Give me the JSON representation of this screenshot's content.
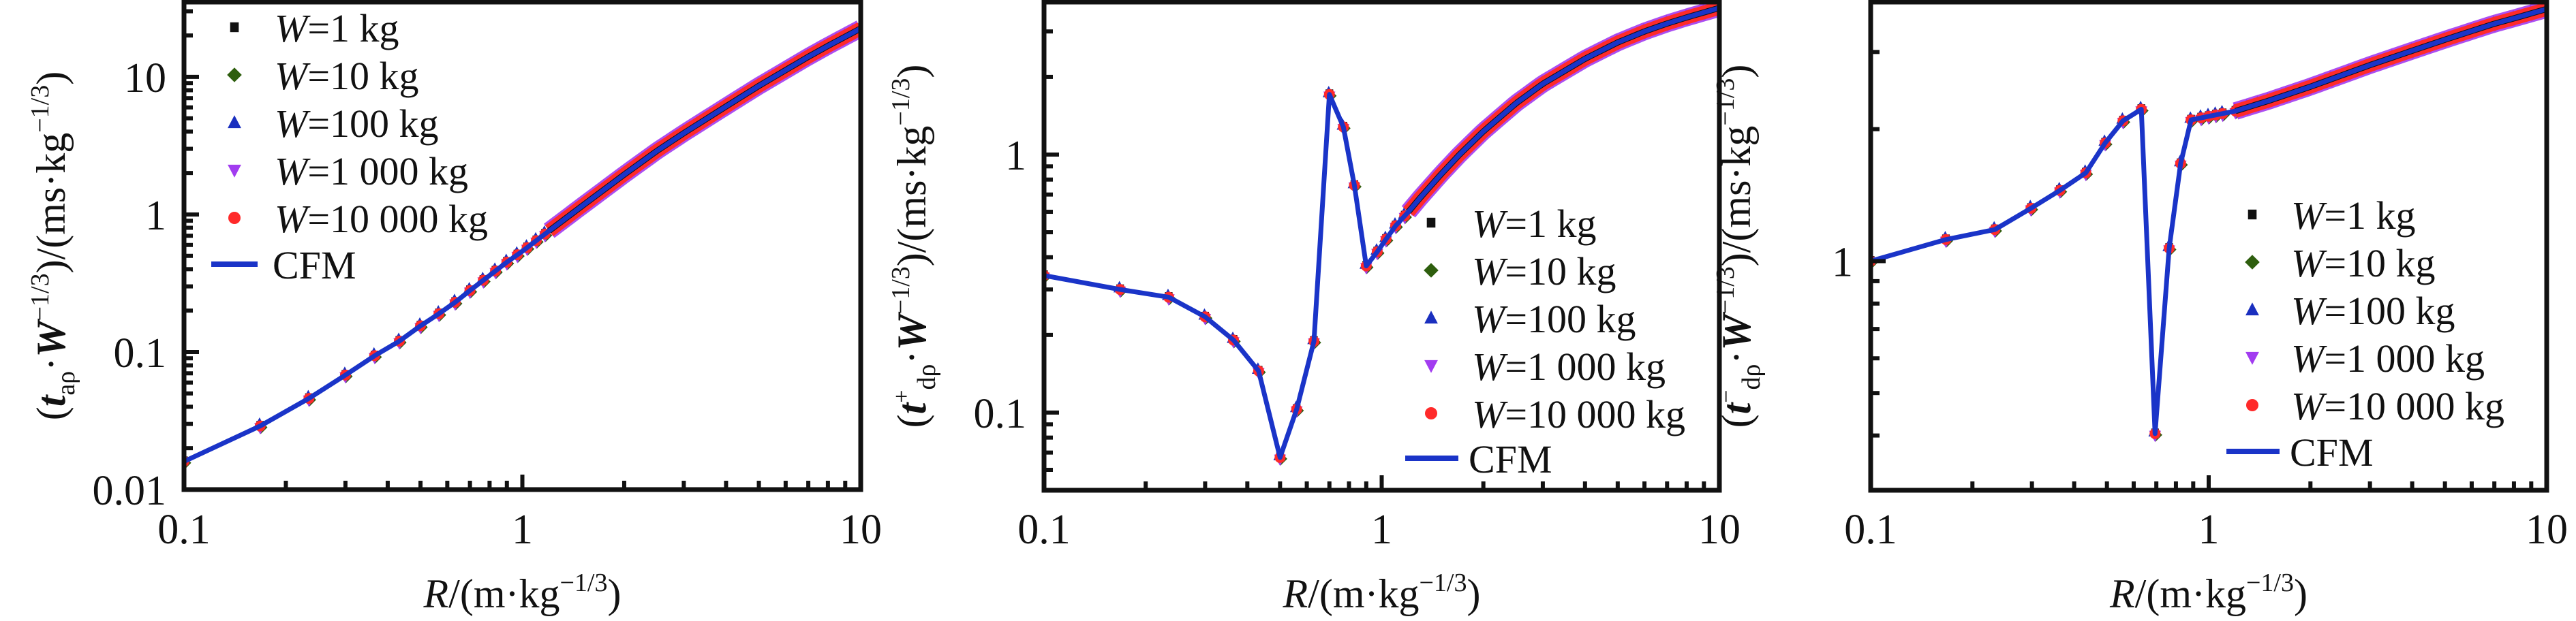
{
  "legend_labels": {
    "w1": "=1  kg",
    "w10": "=10 kg",
    "w100": "=100 kg",
    "w1000": "=1 000 kg",
    "w10000": "=10 000 kg",
    "w_symbol": "W",
    "cfm": "CFM"
  },
  "colors": {
    "w1": "#111111",
    "w10": "#2e5e0e",
    "w100": "#1a2fbf",
    "w1000": "#a23cf0",
    "w10000": "#ff2a2a",
    "cfm": "#1a34c8",
    "axis": "#111111"
  },
  "chart_data": [
    {
      "type": "scatter",
      "panel": "left",
      "xscale": "log",
      "yscale": "log",
      "xlim": [
        0.1,
        10
      ],
      "ylim": [
        0.01,
        35
      ],
      "xticks": [
        "0.1",
        "1",
        "10"
      ],
      "yticks": [
        "0.01",
        "0.1",
        "1",
        "10"
      ],
      "ytick_values": [
        0.01,
        0.1,
        1,
        10
      ],
      "xlabel": {
        "italic": "R",
        "text": "/(m·kg",
        "sup": "−1/3",
        "close": ")"
      },
      "ylabel": {
        "open": "(",
        "var": "t",
        "sub": "aρ",
        "mid": "·",
        "var2": "W",
        "sup": "−1/3",
        "tail": ")/(ms·kg",
        "sup2": "−1/3",
        "close": ")"
      },
      "legend_position": "top-left",
      "markers_x": [
        0.1,
        0.168,
        0.234,
        0.3,
        0.366,
        0.433,
        0.5,
        0.567,
        0.633,
        0.7,
        0.767,
        0.833,
        0.9,
        0.967,
        1.033,
        1.1,
        1.167,
        1.233,
        1.3,
        1.4,
        1.5,
        1.6,
        1.7,
        1.8,
        1.9,
        2.0,
        2.2,
        2.4,
        2.6,
        2.8,
        3.0,
        3.3,
        3.6,
        4.0,
        4.5,
        5.0,
        5.5,
        6.0,
        6.5,
        7.0,
        7.5,
        8.0,
        8.5,
        9.0,
        9.5,
        10.0
      ],
      "cfm": {
        "x": [
          0.1,
          0.168,
          0.234,
          0.3,
          0.366,
          0.433,
          0.5,
          0.567,
          0.633,
          0.7,
          0.8,
          0.9,
          1.0,
          1.2,
          1.5,
          2.0,
          2.5,
          3.0,
          4.0,
          5.0,
          6.0,
          7.0,
          8.0,
          9.0,
          10.0
        ],
        "y": [
          0.016,
          0.029,
          0.046,
          0.068,
          0.094,
          0.12,
          0.155,
          0.19,
          0.23,
          0.28,
          0.36,
          0.45,
          0.54,
          0.76,
          1.15,
          1.95,
          2.9,
          3.9,
          6.1,
          8.6,
          11.2,
          14.0,
          16.8,
          19.6,
          22.5
        ]
      },
      "series": [
        {
          "name": "W=1  kg",
          "marker": "square"
        },
        {
          "name": "W=10 kg",
          "marker": "diamond"
        },
        {
          "name": "W=100 kg",
          "marker": "triangle-up"
        },
        {
          "name": "W=1 000 kg",
          "marker": "triangle-down"
        },
        {
          "name": "W=10 000 kg",
          "marker": "circle"
        },
        {
          "name": "CFM",
          "marker": "line"
        }
      ]
    },
    {
      "type": "scatter",
      "panel": "middle",
      "xscale": "log",
      "yscale": "log",
      "xlim": [
        0.1,
        10
      ],
      "ylim": [
        0.05,
        3.9
      ],
      "xticks": [
        "0.1",
        "1",
        "10"
      ],
      "yticks": [
        "0.1",
        "1"
      ],
      "ytick_values": [
        0.1,
        1
      ],
      "xlabel": {
        "italic": "R",
        "text": "/(m·kg",
        "sup": "−1/3",
        "close": ")"
      },
      "ylabel": {
        "open": "(",
        "var": "t",
        "sub": "dρ",
        "supvar": "+",
        "mid": "·",
        "var2": "W",
        "sup": "−1/3",
        "tail": ")/(ms·kg",
        "sup2": "−1/3",
        "close": ")"
      },
      "legend_position": "center-right",
      "markers_x": [
        0.1,
        0.168,
        0.234,
        0.3,
        0.364,
        0.432,
        0.5,
        0.56,
        0.63,
        0.7,
        0.77,
        0.83,
        0.9,
        0.97,
        1.03,
        1.1,
        1.17,
        1.23,
        1.3,
        1.4,
        1.5,
        1.6,
        1.7,
        1.8,
        2.0,
        2.2,
        2.5,
        3.0,
        3.5,
        4.0,
        5.0,
        6.0,
        7.0,
        8.0,
        9.0,
        10.0
      ],
      "cfm": {
        "x": [
          0.1,
          0.168,
          0.234,
          0.3,
          0.364,
          0.432,
          0.5,
          0.56,
          0.63,
          0.7,
          0.77,
          0.83,
          0.9,
          0.97,
          1.03,
          1.1,
          1.2,
          1.3,
          1.5,
          1.7,
          2.0,
          2.5,
          3.0,
          4.0,
          5.0,
          6.0,
          7.0,
          8.0,
          10.0
        ],
        "y": [
          0.34,
          0.3,
          0.28,
          0.235,
          0.191,
          0.145,
          0.067,
          0.103,
          0.189,
          1.71,
          1.28,
          0.76,
          0.37,
          0.42,
          0.47,
          0.53,
          0.6,
          0.68,
          0.84,
          1.0,
          1.23,
          1.58,
          1.88,
          2.35,
          2.72,
          3.0,
          3.22,
          3.4,
          3.7
        ]
      },
      "series": [
        {
          "name": "W=1  kg",
          "marker": "square"
        },
        {
          "name": "W=10 kg",
          "marker": "diamond"
        },
        {
          "name": "W=100 kg",
          "marker": "triangle-up"
        },
        {
          "name": "W=1 000 kg",
          "marker": "triangle-down"
        },
        {
          "name": "W=10 000 kg",
          "marker": "circle"
        },
        {
          "name": "CFM",
          "marker": "line"
        }
      ]
    },
    {
      "type": "scatter",
      "panel": "right",
      "xscale": "log",
      "yscale": "log",
      "xlim": [
        0.1,
        10
      ],
      "ylim": [
        0.3,
        3.9
      ],
      "xticks": [
        "0.1",
        "1",
        "10"
      ],
      "yticks": [
        "1"
      ],
      "ytick_values": [
        1
      ],
      "xlabel": {
        "italic": "R",
        "text": "/(m·kg",
        "sup": "−1/3",
        "close": ")"
      },
      "ylabel": {
        "open": "(",
        "var": "t",
        "sub": "dρ",
        "supvar": "−",
        "mid": "·",
        "var2": "W",
        "sup": "−1/3",
        "tail": ")/(ms·kg",
        "sup2": "−1/3",
        "close": ")"
      },
      "legend_position": "center-right",
      "markers_x": [
        0.1,
        0.167,
        0.233,
        0.298,
        0.363,
        0.433,
        0.494,
        0.558,
        0.632,
        0.694,
        0.764,
        0.826,
        0.887,
        0.95,
        1.0,
        1.05,
        1.1,
        1.2,
        1.3,
        1.4,
        1.5,
        1.7,
        2.0,
        2.3,
        2.6,
        3.0,
        3.5,
        4.0,
        4.5,
        5.0,
        6.0,
        7.0,
        8.0,
        9.0,
        10.0
      ],
      "cfm": {
        "x": [
          0.1,
          0.167,
          0.233,
          0.298,
          0.363,
          0.433,
          0.494,
          0.558,
          0.632,
          0.694,
          0.764,
          0.826,
          0.887,
          1.0,
          1.2,
          1.5,
          2.0,
          3.0,
          4.0,
          5.0,
          6.0,
          7.0,
          8.0,
          10.0
        ],
        "y": [
          1.0,
          1.12,
          1.18,
          1.32,
          1.45,
          1.59,
          1.86,
          2.09,
          2.22,
          0.404,
          1.07,
          1.67,
          2.1,
          2.14,
          2.2,
          2.32,
          2.5,
          2.8,
          3.02,
          3.2,
          3.35,
          3.48,
          3.58,
          3.76
        ]
      },
      "series": [
        {
          "name": "W=1  kg",
          "marker": "square"
        },
        {
          "name": "W=10 kg",
          "marker": "diamond"
        },
        {
          "name": "W=100 kg",
          "marker": "triangle-up"
        },
        {
          "name": "W=1 000 kg",
          "marker": "triangle-down"
        },
        {
          "name": "W=10 000 kg",
          "marker": "circle"
        },
        {
          "name": "CFM",
          "marker": "line"
        }
      ]
    }
  ]
}
